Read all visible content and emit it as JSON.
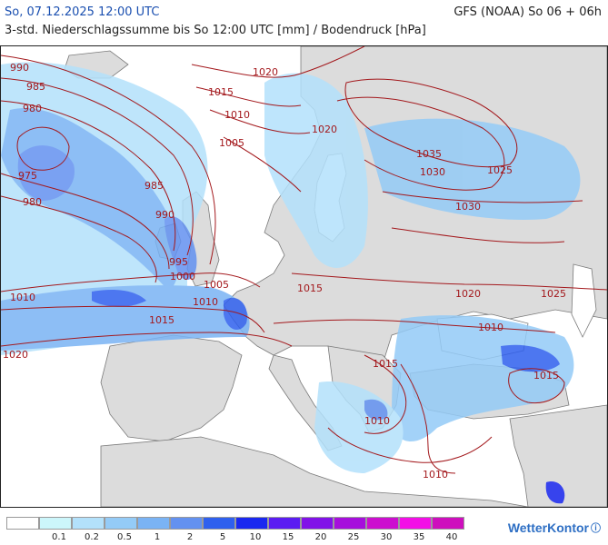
{
  "header": {
    "date_label": "So, 07.12.2025 12:00 UTC",
    "model_label": "GFS (NOAA) So 06 + 06h",
    "subtitle": "3-std. Niederschlagssumme bis So 12:00 UTC [mm] / Bodendruck [hPa]"
  },
  "brand": {
    "name": "WetterKontor",
    "mark": "ⓘ"
  },
  "colors": {
    "land": "#dcdcdc",
    "sea": "#ffffff",
    "border": "#7a7a7a",
    "isobar": "#a3181c",
    "isobar_label": "#a3181c"
  },
  "isobar_labels": [
    {
      "text": "990"
    },
    {
      "text": "985"
    },
    {
      "text": "980"
    },
    {
      "text": "975"
    },
    {
      "text": "980"
    },
    {
      "text": "1020"
    },
    {
      "text": "1015"
    },
    {
      "text": "1010"
    },
    {
      "text": "1005"
    },
    {
      "text": "985"
    },
    {
      "text": "990"
    },
    {
      "text": "995"
    },
    {
      "text": "1000"
    },
    {
      "text": "1005"
    },
    {
      "text": "1010"
    },
    {
      "text": "1010"
    },
    {
      "text": "1015"
    },
    {
      "text": "1020"
    },
    {
      "text": "1015"
    },
    {
      "text": "1020"
    },
    {
      "text": "1035"
    },
    {
      "text": "1030"
    },
    {
      "text": "1025"
    },
    {
      "text": "1030"
    },
    {
      "text": "1020"
    },
    {
      "text": "1025"
    },
    {
      "text": "1010"
    },
    {
      "text": "1015"
    },
    {
      "text": "1015"
    },
    {
      "text": "1010"
    },
    {
      "text": "1010"
    }
  ],
  "legend": [
    {
      "label": "0.1",
      "color": "#ffffff"
    },
    {
      "label": "0.2",
      "color": "#ccf6fb"
    },
    {
      "label": "0.5",
      "color": "#b3e1fb"
    },
    {
      "label": "1",
      "color": "#94cbf7"
    },
    {
      "label": "2",
      "color": "#7ab3f4"
    },
    {
      "label": "5",
      "color": "#6391f0"
    },
    {
      "label": "10",
      "color": "#2f60ee"
    },
    {
      "label": "15",
      "color": "#1a28f0"
    },
    {
      "label": "20",
      "color": "#5b1cf2"
    },
    {
      "label": "25",
      "color": "#8112e8"
    },
    {
      "label": "30",
      "color": "#a60fdc"
    },
    {
      "label": "35",
      "color": "#cc0ecf"
    },
    {
      "label": "40",
      "color": "#f30fe6"
    },
    {
      "label": "",
      "color": "#ce0fbd"
    }
  ]
}
